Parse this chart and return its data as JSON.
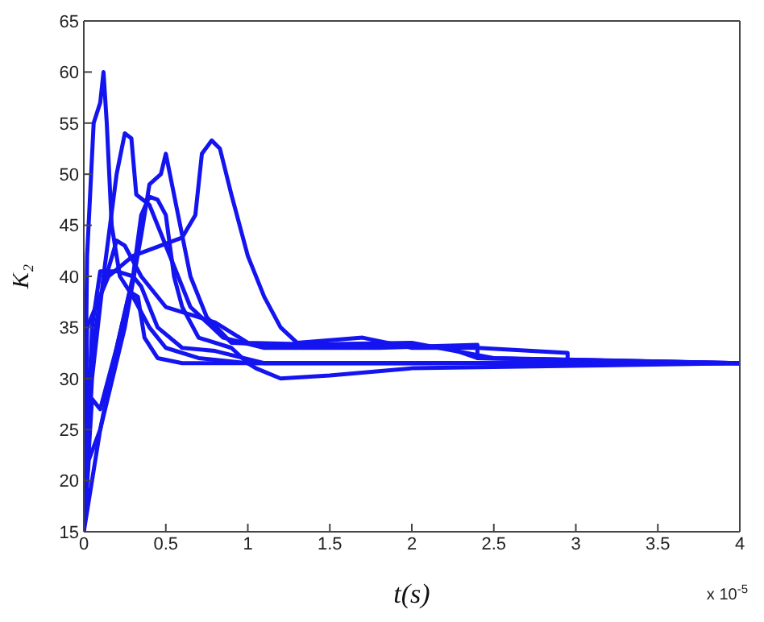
{
  "chart_data": {
    "type": "line",
    "xlabel": "t(s)",
    "ylabel": "K₂",
    "annotations": [
      "x 10$^{-5}$"
    ],
    "xlim": [
      0,
      4
    ],
    "xticks": [
      0,
      0.5,
      1,
      1.5,
      2,
      2.5,
      3,
      3.5,
      4
    ],
    "ylim": [
      15,
      65
    ],
    "yticks": [
      15,
      20,
      25,
      30,
      35,
      40,
      45,
      50,
      55,
      60,
      65
    ],
    "marker": "none",
    "line_style": "solid",
    "series": [
      {
        "color": "#1414f0",
        "x": [
          0,
          0.02,
          0.06,
          0.1,
          0.12,
          0.14,
          0.17,
          0.22,
          0.3,
          0.4,
          0.5,
          0.7,
          1,
          4
        ],
        "values": [
          15,
          42,
          55,
          57,
          60,
          55,
          45,
          40,
          38,
          35,
          33,
          32,
          31.5,
          31.5
        ]
      },
      {
        "color": "#1414f0",
        "x": [
          0,
          0.05,
          0.12,
          0.2,
          0.25,
          0.29,
          0.32,
          0.4,
          0.5,
          0.65,
          0.85,
          1.1,
          1.8,
          2.4,
          2.4,
          4
        ],
        "values": [
          15,
          30,
          40,
          50,
          54,
          53.5,
          48,
          47,
          43,
          37,
          34,
          33,
          33,
          33.3,
          32,
          31.5
        ]
      },
      {
        "color": "#1414f0",
        "x": [
          0,
          0.1,
          0.25,
          0.35,
          0.4,
          0.47,
          0.5,
          0.55,
          0.65,
          0.75,
          0.9,
          1.2,
          2,
          2.5,
          4
        ],
        "values": [
          15,
          25,
          35,
          44,
          49,
          50,
          52,
          48,
          40,
          36,
          33.5,
          33.3,
          33.5,
          32,
          31.5
        ]
      },
      {
        "color": "#1414f0",
        "x": [
          0,
          0.02,
          0.15,
          0.3,
          0.6,
          0.68,
          0.72,
          0.78,
          0.83,
          0.9,
          1,
          1.1,
          1.2,
          1.3,
          1.7,
          2,
          2.4,
          2.95,
          2.95,
          4
        ],
        "values": [
          15,
          35,
          40,
          42,
          43.8,
          46,
          52,
          53.3,
          52.5,
          48,
          42,
          38,
          35,
          33.5,
          34,
          33,
          33,
          32.5,
          31.5,
          31.5
        ]
      },
      {
        "color": "#1414f0",
        "x": [
          0,
          0.05,
          0.1,
          0.2,
          0.3,
          0.35,
          0.4,
          0.45,
          0.5,
          0.55,
          0.6,
          0.7,
          0.9,
          1,
          1.05,
          1.2,
          1.5,
          2,
          4
        ],
        "values": [
          15,
          28,
          27,
          33,
          40,
          46,
          47.8,
          47.5,
          46,
          40,
          37,
          34,
          33,
          31.5,
          31,
          30,
          30.3,
          31,
          31.5
        ]
      },
      {
        "color": "#1414f0",
        "x": [
          0,
          0.03,
          0.1,
          0.2,
          0.25,
          0.35,
          0.5,
          0.7,
          0.8,
          1,
          1.5,
          2.2,
          2.4,
          4
        ],
        "values": [
          15,
          30,
          38,
          43.5,
          43,
          40,
          37,
          36,
          35.5,
          33.5,
          33.3,
          33.1,
          32,
          31.5
        ]
      },
      {
        "color": "#1414f0",
        "x": [
          0,
          0.05,
          0.1,
          0.2,
          0.3,
          0.35,
          0.45,
          0.6,
          0.8,
          1.1,
          2,
          4
        ],
        "values": [
          15,
          35,
          40.5,
          40.5,
          40,
          39,
          35,
          33,
          32.7,
          31.5,
          31.5,
          31.5
        ]
      },
      {
        "color": "#1414f0",
        "x": [
          0,
          0.03,
          0.1,
          0.2,
          0.28,
          0.33,
          0.37,
          0.45,
          0.6,
          4
        ],
        "values": [
          15,
          22,
          25,
          33,
          38.5,
          38,
          34,
          32,
          31.5,
          31.5
        ]
      }
    ]
  }
}
